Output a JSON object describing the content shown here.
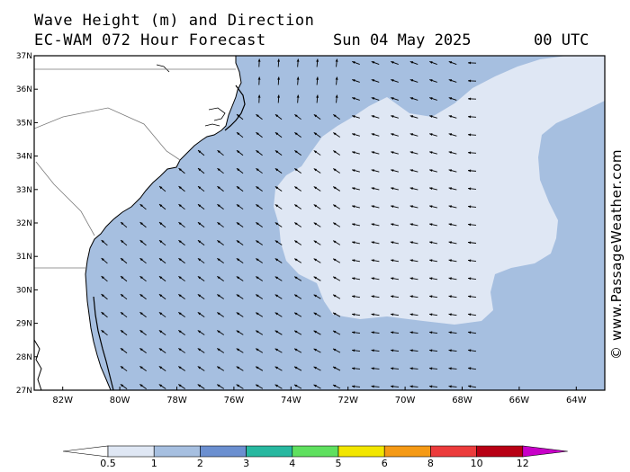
{
  "header": {
    "title": "Wave Height (m) and Direction",
    "model": "EC-WAM 072 Hour Forecast",
    "date": "Sun 04 May 2025",
    "time": "00 UTC"
  },
  "map": {
    "lat_range": [
      27,
      37
    ],
    "lon_range": [
      -83,
      -63
    ],
    "lat_labels": [
      "37N",
      "36N",
      "35N",
      "34N",
      "33N",
      "32N",
      "31N",
      "30N",
      "29N",
      "28N",
      "27N"
    ],
    "lon_labels": [
      "82W",
      "80W",
      "78W",
      "76W",
      "74W",
      "72W",
      "70W",
      "68W",
      "66W",
      "64W"
    ],
    "colors": {
      "land": "#ffffff",
      "band_0_5_1": "#dfe7f4",
      "band_1_2": "#a6bfe0",
      "coast": "#000000",
      "border": "#7a7a7a"
    },
    "dominant_wave_direction": "arrows point northwest offshore, north near Cape Hatteras, west in the east"
  },
  "colorbar": {
    "labels": [
      "0.5",
      "1",
      "2",
      "3",
      "4",
      "5",
      "6",
      "8",
      "10",
      "12"
    ],
    "colors": [
      "#dfe7f4",
      "#a6bfe0",
      "#6b8fd0",
      "#28b8a0",
      "#5fe05f",
      "#f2e600",
      "#f59a16",
      "#ec3c3c",
      "#b80014",
      "#c800c8"
    ]
  },
  "credit": "© www.PassageWeather.com"
}
